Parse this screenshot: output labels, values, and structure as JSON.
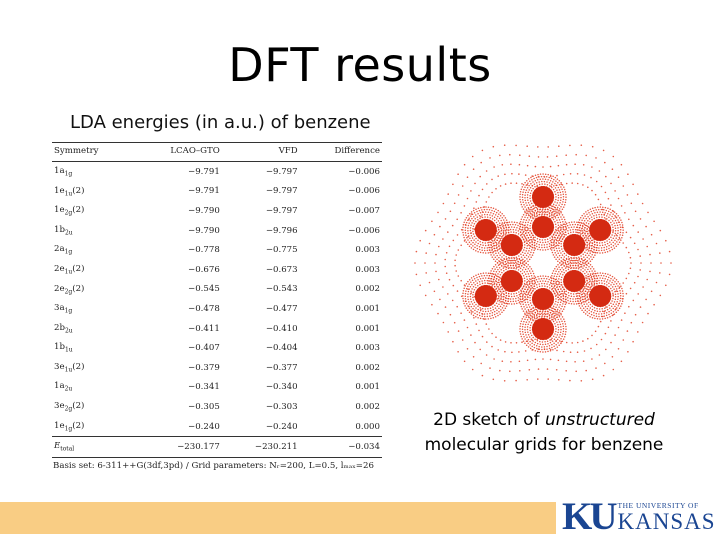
{
  "slide": {
    "title": "DFT results",
    "subtitle": "LDA energies (in a.u.) of benzene",
    "caption": {
      "line1_prefix": "2D sketch of ",
      "line1_italic": "unstructured",
      "line2": "molecular grids for benzene"
    },
    "logo": {
      "monogram": "KU",
      "line1": "THE UNIVERSITY OF",
      "line2": "KANSAS"
    }
  },
  "table": {
    "headers": [
      "Symmetry",
      "LCAO–GTO",
      "VFD",
      "Difference"
    ],
    "rows": [
      {
        "sym": "1a",
        "sub": "1g",
        "suffix": "",
        "lcao": "−9.791",
        "vfd": "−9.797",
        "diff": "−0.006"
      },
      {
        "sym": "1e",
        "sub": "1u",
        "suffix": "(2)",
        "lcao": "−9.791",
        "vfd": "−9.797",
        "diff": "−0.006"
      },
      {
        "sym": "1e",
        "sub": "2g",
        "suffix": "(2)",
        "lcao": "−9.790",
        "vfd": "−9.797",
        "diff": "−0.007"
      },
      {
        "sym": "1b",
        "sub": "2u",
        "suffix": "",
        "lcao": "−9.790",
        "vfd": "−9.796",
        "diff": "−0.006"
      },
      {
        "sym": "2a",
        "sub": "1g",
        "suffix": "",
        "lcao": "−0.778",
        "vfd": "−0.775",
        "diff": "0.003"
      },
      {
        "sym": "2e",
        "sub": "1u",
        "suffix": "(2)",
        "lcao": "−0.676",
        "vfd": "−0.673",
        "diff": "0.003"
      },
      {
        "sym": "2e",
        "sub": "2g",
        "suffix": "(2)",
        "lcao": "−0.545",
        "vfd": "−0.543",
        "diff": "0.002"
      },
      {
        "sym": "3a",
        "sub": "1g",
        "suffix": "",
        "lcao": "−0.478",
        "vfd": "−0.477",
        "diff": "0.001"
      },
      {
        "sym": "2b",
        "sub": "2u",
        "suffix": "",
        "lcao": "−0.411",
        "vfd": "−0.410",
        "diff": "0.001"
      },
      {
        "sym": "1b",
        "sub": "1u",
        "suffix": "",
        "lcao": "−0.407",
        "vfd": "−0.404",
        "diff": "0.003"
      },
      {
        "sym": "3e",
        "sub": "1u",
        "suffix": "(2)",
        "lcao": "−0.379",
        "vfd": "−0.377",
        "diff": "0.002"
      },
      {
        "sym": "1a",
        "sub": "2u",
        "suffix": "",
        "lcao": "−0.341",
        "vfd": "−0.340",
        "diff": "0.001"
      },
      {
        "sym": "3e",
        "sub": "2g",
        "suffix": "(2)",
        "lcao": "−0.305",
        "vfd": "−0.303",
        "diff": "0.002"
      },
      {
        "sym": "1e",
        "sub": "1g",
        "suffix": "(2)",
        "lcao": "−0.240",
        "vfd": "−0.240",
        "diff": "0.000"
      }
    ],
    "total": {
      "sym": "E",
      "sub": "total",
      "lcao": "−230.177",
      "vfd": "−230.211",
      "diff": "−0.034"
    },
    "footnote": "Basis set: 6-311++G(3df,3pd) / Grid parameters: Nᵣ=200, L=0.5, lₘₐₓ=26"
  },
  "grid": {
    "dot_color": "#e0371c",
    "center_color": "#d42a12"
  }
}
